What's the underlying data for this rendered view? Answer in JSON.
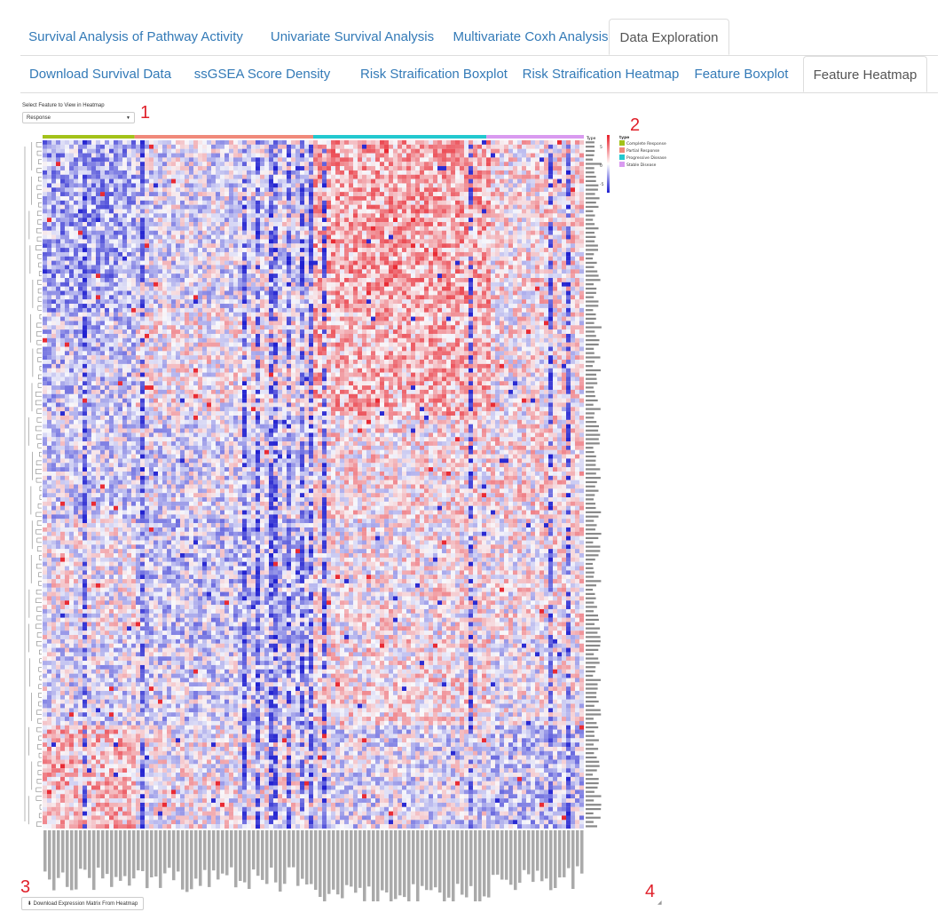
{
  "main_tabs": [
    {
      "label": "Survival Analysis of Pathway Activity",
      "active": false
    },
    {
      "label": "Univariate Survival Analysis",
      "active": false
    },
    {
      "label": "Multivariate Coxh Analysis",
      "active": false
    },
    {
      "label": "Data Exploration",
      "active": true
    }
  ],
  "sub_tabs": [
    {
      "label": "Download Survival Data",
      "active": false
    },
    {
      "label": "ssGSEA Score Density",
      "active": false
    },
    {
      "label": "Risk Straification Boxplot",
      "active": false
    },
    {
      "label": "Risk Straification Heatmap",
      "active": false
    },
    {
      "label": "Feature Boxplot",
      "active": false
    },
    {
      "label": "Feature Heatmap",
      "active": true
    }
  ],
  "feature_select": {
    "label": "Select Feature to View in Heatmap",
    "value": "Response"
  },
  "annotations": {
    "n1": "1",
    "n2": "2",
    "n3": "3",
    "n4": "4"
  },
  "download_button": {
    "label": "Download Expression Matrix From Heatmap"
  },
  "heatmap": {
    "annotation_title": "Type",
    "legend_title": "type",
    "legend_items": [
      {
        "label": "Complete Response",
        "color": "#a3c21a"
      },
      {
        "label": "Partial Response",
        "color": "#f0897a"
      },
      {
        "label": "Progressive Disease",
        "color": "#22c8cf"
      },
      {
        "label": "Stable Disease",
        "color": "#d99af0"
      }
    ],
    "scale_ticks": [
      "5",
      "0",
      "-5"
    ],
    "colors": {
      "high": "#e8202a",
      "mid": "#f8f8fb",
      "low": "#2020d0"
    }
  }
}
